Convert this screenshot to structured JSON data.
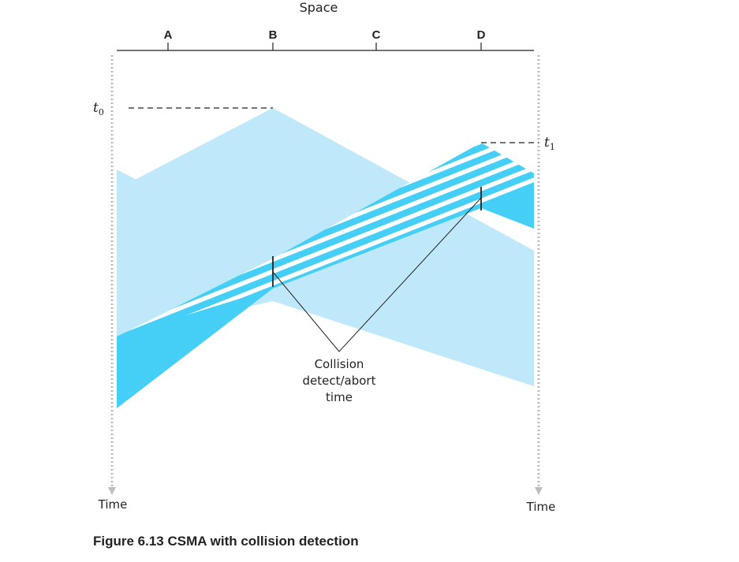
{
  "axes": {
    "space_label": "Space",
    "time_label_left": "Time",
    "time_label_right": "Time"
  },
  "stations": [
    {
      "label": "A"
    },
    {
      "label": "B"
    },
    {
      "label": "C"
    },
    {
      "label": "D"
    }
  ],
  "markers": {
    "t0": {
      "base": "t",
      "sub": "0"
    },
    "t1": {
      "base": "t",
      "sub": "1"
    }
  },
  "callout": {
    "lines": [
      "Collision",
      "detect/abort",
      "time"
    ]
  },
  "caption": "Figure 6.13 CSMA with collision detection",
  "colors": {
    "light_signal": "#bfe9fb",
    "dark_signal": "#45cff7",
    "stripe": "#ffffff",
    "dotted_axis": "#bdbdbd",
    "ink": "#222222"
  }
}
